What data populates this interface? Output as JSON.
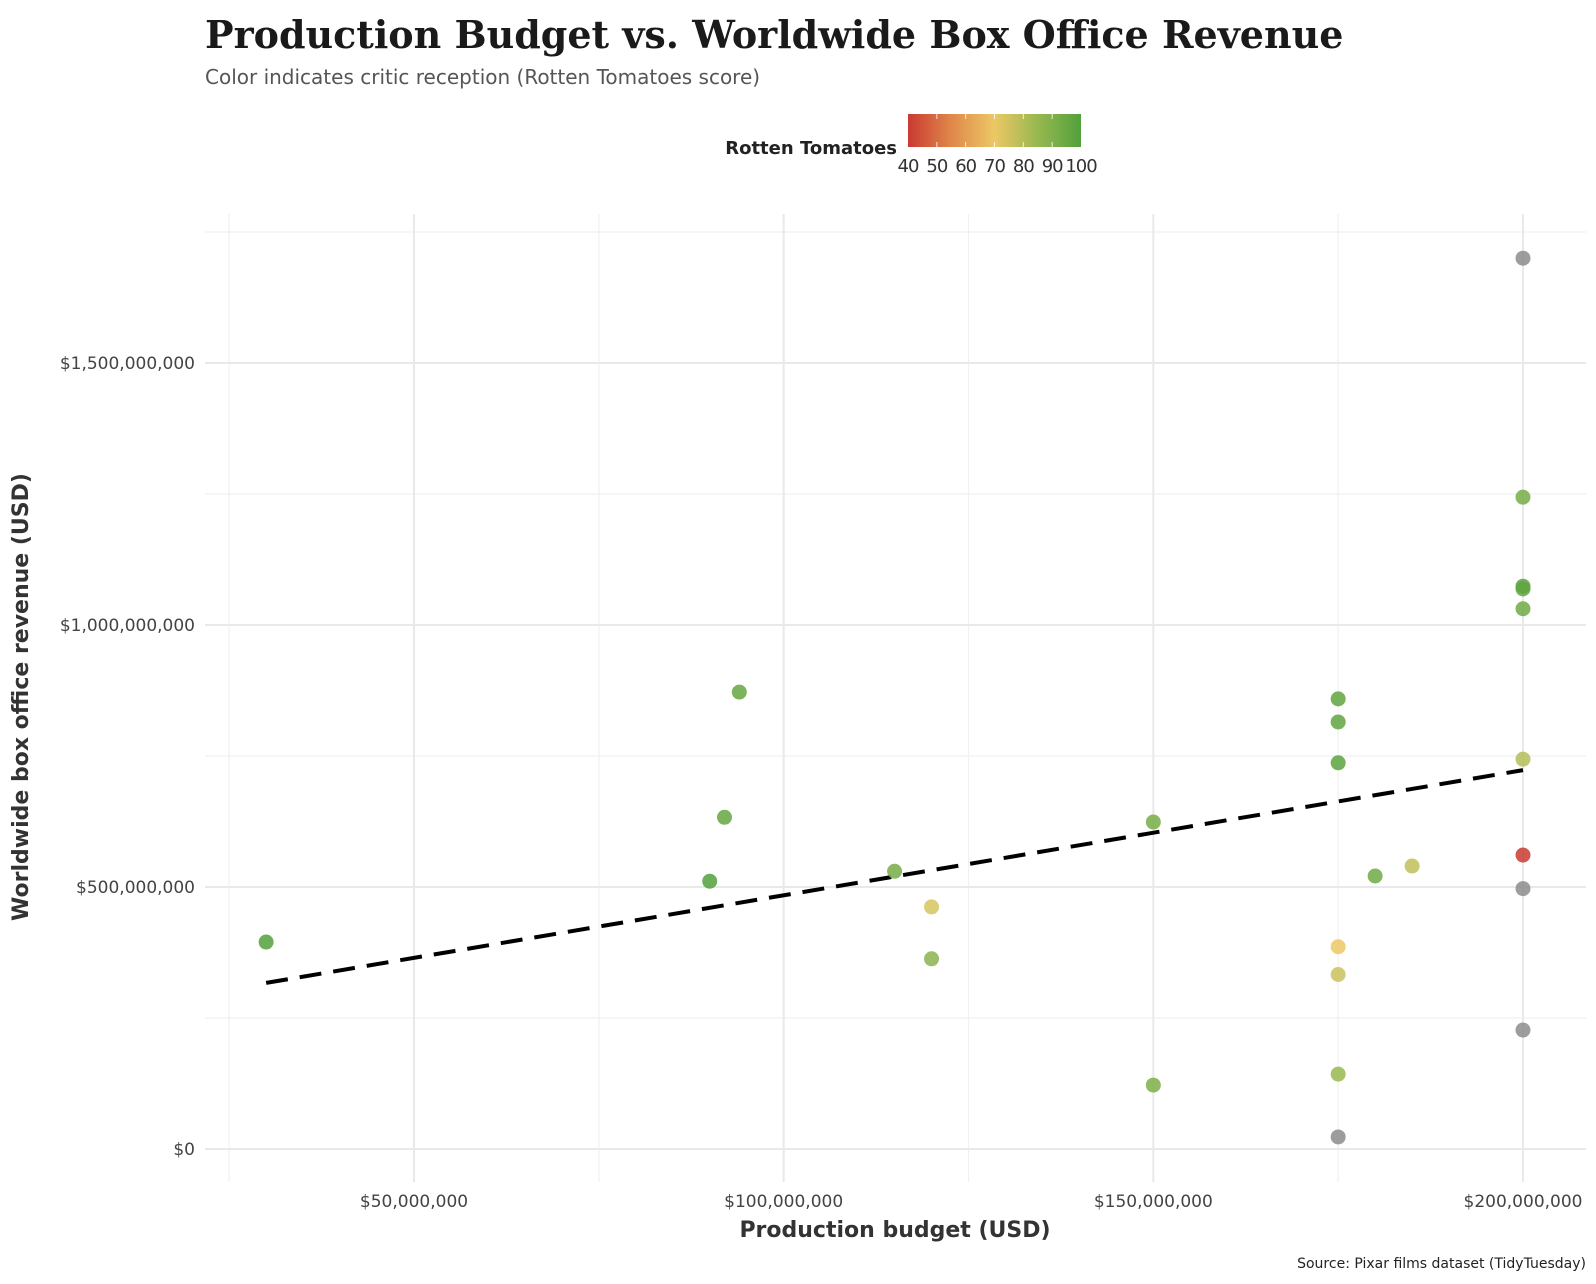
{
  "chart_data": {
    "type": "scatter",
    "title": "Production Budget vs. Worldwide Box Office Revenue",
    "subtitle": "Color indicates critic reception (Rotten Tomatoes score)",
    "xlabel": "Production budget (USD)",
    "ylabel": "Worldwide box office revenue (USD)",
    "caption": "Source: Pixar films dataset (TidyTuesday)",
    "xlim": [
      21000000,
      210000000
    ],
    "ylim": [
      -40000000,
      1790000000
    ],
    "x_ticks": [
      {
        "value": 50000000,
        "label": "$50,000,000"
      },
      {
        "value": 100000000,
        "label": "$100,000,000"
      },
      {
        "value": 150000000,
        "label": "$150,000,000"
      },
      {
        "value": 200000000,
        "label": "$200,000,000"
      }
    ],
    "x_minor": [
      25000000,
      75000000,
      125000000,
      175000000
    ],
    "y_ticks": [
      {
        "value": 0,
        "label": "$0"
      },
      {
        "value": 500000000,
        "label": "$500,000,000"
      },
      {
        "value": 1000000000,
        "label": "$1,000,000,000"
      },
      {
        "value": 1500000000,
        "label": "$1,500,000,000"
      }
    ],
    "y_minor": [
      250000000,
      750000000,
      1250000000,
      1750000000
    ],
    "grid": true,
    "legend": {
      "title": "Rotten Tomatoes",
      "position": "top",
      "type": "colorbar",
      "min": 40,
      "max": 100,
      "ticks": [
        40,
        50,
        60,
        70,
        80,
        90,
        100
      ],
      "color_stops": [
        {
          "value": 40,
          "color": "#c93a32"
        },
        {
          "value": 55,
          "color": "#e0874a"
        },
        {
          "value": 70,
          "color": "#ecc865"
        },
        {
          "value": 85,
          "color": "#98b850"
        },
        {
          "value": 100,
          "color": "#52a03c"
        }
      ],
      "na_color": "#8c8c8c"
    },
    "points": [
      {
        "budget": 30000000,
        "revenue": 395000000,
        "rt": 100
      },
      {
        "budget": 90000000,
        "revenue": 511000000,
        "rt": 100
      },
      {
        "budget": 92000000,
        "revenue": 633000000,
        "rt": 96
      },
      {
        "budget": 94000000,
        "revenue": 872000000,
        "rt": 96
      },
      {
        "budget": 115000000,
        "revenue": 530000000,
        "rt": 92
      },
      {
        "budget": 120000000,
        "revenue": 462000000,
        "rt": 74
      },
      {
        "budget": 120000000,
        "revenue": 363000000,
        "rt": 88
      },
      {
        "budget": 150000000,
        "revenue": 624000000,
        "rt": 92
      },
      {
        "budget": 150000000,
        "revenue": 122000000,
        "rt": 91
      },
      {
        "budget": 175000000,
        "revenue": 859000000,
        "rt": 97
      },
      {
        "budget": 175000000,
        "revenue": 815000000,
        "rt": 97
      },
      {
        "budget": 175000000,
        "revenue": 737000000,
        "rt": 98
      },
      {
        "budget": 175000000,
        "revenue": 386000000,
        "rt": 70
      },
      {
        "budget": 175000000,
        "revenue": 333000000,
        "rt": 76
      },
      {
        "budget": 175000000,
        "revenue": 143000000,
        "rt": 85
      },
      {
        "budget": 175000000,
        "revenue": 23000000,
        "rt": null
      },
      {
        "budget": 180000000,
        "revenue": 521000000,
        "rt": 94
      },
      {
        "budget": 185000000,
        "revenue": 540000000,
        "rt": 78
      },
      {
        "budget": 200000000,
        "revenue": 1700000000,
        "rt": null
      },
      {
        "budget": 200000000,
        "revenue": 1244000000,
        "rt": 92
      },
      {
        "budget": 200000000,
        "revenue": 1074000000,
        "rt": 98
      },
      {
        "budget": 200000000,
        "revenue": 1069000000,
        "rt": 97
      },
      {
        "budget": 200000000,
        "revenue": 1031000000,
        "rt": 94
      },
      {
        "budget": 200000000,
        "revenue": 744000000,
        "rt": 80
      },
      {
        "budget": 200000000,
        "revenue": 561000000,
        "rt": 40
      },
      {
        "budget": 200000000,
        "revenue": 497000000,
        "rt": null
      },
      {
        "budget": 200000000,
        "revenue": 227000000,
        "rt": null
      }
    ],
    "trend_line": {
      "style": "dashed",
      "color": "#000000",
      "from": {
        "budget": 30000000,
        "revenue": 317000000
      },
      "to": {
        "budget": 200000000,
        "revenue": 723000000
      }
    }
  }
}
